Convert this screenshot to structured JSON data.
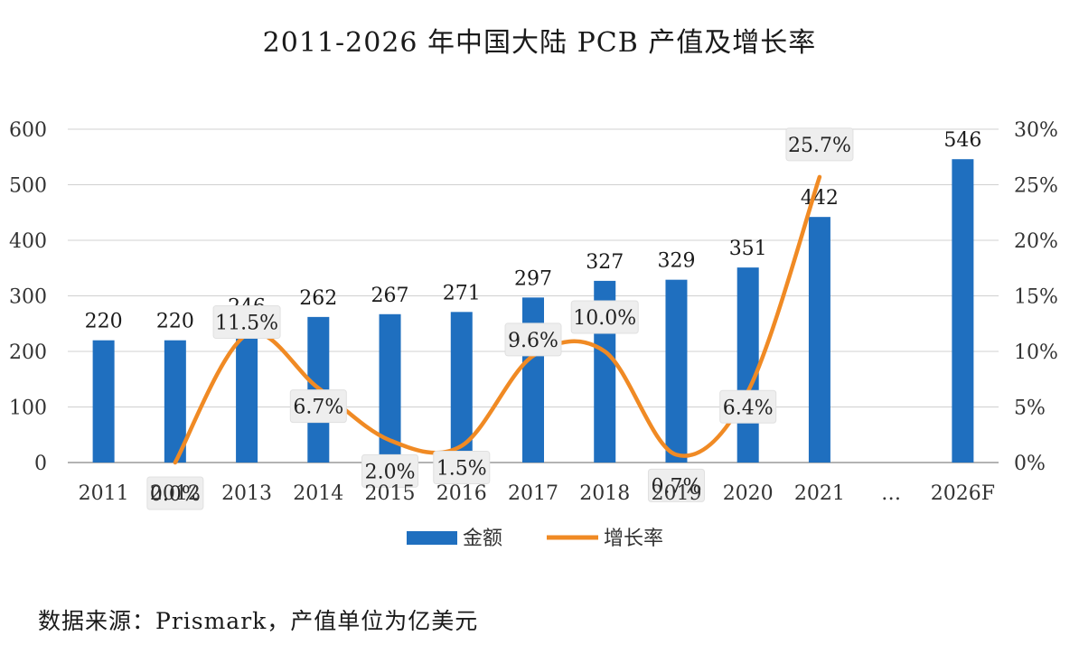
{
  "chart_data": {
    "type": "bar",
    "title": "2011-2026 年中国大陆 PCB 产值及增长率",
    "categories": [
      "2011",
      "2012",
      "2013",
      "2014",
      "2015",
      "2016",
      "2017",
      "2018",
      "2019",
      "2020",
      "2021",
      "…",
      "2026F"
    ],
    "series": [
      {
        "name": "金额",
        "type": "bar",
        "axis": "left",
        "color": "#1f6fbf",
        "values": [
          220,
          220,
          246,
          262,
          267,
          271,
          297,
          327,
          329,
          351,
          442,
          null,
          546
        ],
        "labels": [
          "220",
          "220",
          "246",
          "262",
          "267",
          "271",
          "297",
          "327",
          "329",
          "351",
          "442",
          "",
          "546"
        ]
      },
      {
        "name": "增长率",
        "type": "line",
        "axis": "right",
        "color": "#f08a24",
        "values": [
          null,
          0.0,
          11.5,
          6.7,
          2.0,
          1.5,
          9.6,
          10.0,
          0.7,
          6.4,
          25.7,
          null,
          null
        ],
        "labels": [
          "",
          "0.0%",
          "11.5%",
          "6.7%",
          "2.0%",
          "1.5%",
          "9.6%",
          "10.0%",
          "0.7%",
          "6.4%",
          "25.7%",
          "",
          ""
        ]
      }
    ],
    "left_axis": {
      "ylim": [
        0,
        600
      ],
      "ticks": [
        "0",
        "100",
        "200",
        "300",
        "400",
        "500",
        "600"
      ]
    },
    "right_axis": {
      "ylim": [
        0,
        30
      ],
      "ticks": [
        "0%",
        "5%",
        "10%",
        "15%",
        "20%",
        "25%",
        "30%"
      ]
    },
    "grid": true,
    "legend_position": "bottom"
  },
  "source_note": "数据来源：Prismark，产值单位为亿美元",
  "colors": {
    "bar": "#1f6fbf",
    "line": "#f08a24",
    "grid": "#d0d0d0",
    "label_box": "#eeeeee"
  }
}
